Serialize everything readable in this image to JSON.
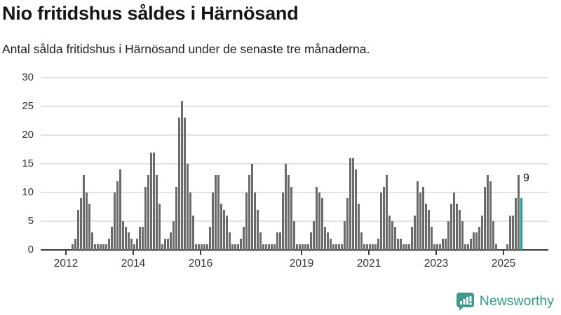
{
  "title": "Nio fritidshus såldes i Härnösand",
  "subtitle": "Antal sålda fritidshus i Härnösand under de senaste tre månaderna.",
  "branding": {
    "logo_text": "Newsworthy",
    "logo_icon": "newsworthy-speech-bubble-bar-chart-icon"
  },
  "colors": {
    "bar": "#6b6b6b",
    "highlight": "#14a099",
    "gridline": "#e2e2e2",
    "axis": "#3c3c3c",
    "logo_teal": "#35998b",
    "text": "#151515"
  },
  "chart_data": {
    "type": "bar",
    "title": "Nio fritidshus såldes i Härnösand",
    "subtitle": "Antal sålda fritidshus i Härnösand under de senaste tre månaderna.",
    "x_start": "2012-01",
    "x_end": "2025-07",
    "x_unit": "month",
    "x_tick_labels": [
      "2012",
      "2014",
      "2016",
      "2019",
      "2021",
      "2023",
      "2025"
    ],
    "y_ticks": [
      0,
      5,
      10,
      15,
      20,
      25,
      30
    ],
    "ylim": [
      0,
      30
    ],
    "grid": "horizontal",
    "legend": "none",
    "values": [
      0,
      0,
      1,
      2,
      7,
      9,
      13,
      10,
      8,
      3,
      1,
      1,
      1,
      1,
      1,
      2,
      4,
      10,
      12,
      14,
      5,
      4,
      3,
      2,
      1,
      2,
      4,
      4,
      11,
      13,
      17,
      17,
      13,
      8,
      1,
      2,
      2,
      3,
      5,
      11,
      23,
      26,
      23,
      15,
      10,
      6,
      1,
      1,
      1,
      1,
      1,
      4,
      10,
      13,
      13,
      8,
      7,
      6,
      3,
      1,
      1,
      1,
      2,
      4,
      10,
      13,
      15,
      10,
      7,
      3,
      1,
      1,
      1,
      1,
      1,
      3,
      3,
      10,
      15,
      13,
      11,
      5,
      1,
      1,
      1,
      1,
      1,
      3,
      5,
      11,
      10,
      9,
      4,
      3,
      2,
      1,
      1,
      1,
      1,
      5,
      9,
      16,
      16,
      14,
      8,
      3,
      1,
      1,
      1,
      1,
      1,
      2,
      10,
      11,
      13,
      6,
      5,
      4,
      2,
      2,
      1,
      1,
      1,
      4,
      6,
      12,
      10,
      11,
      8,
      7,
      4,
      1,
      1,
      1,
      2,
      2,
      5,
      8,
      10,
      8,
      7,
      5,
      1,
      1,
      2,
      3,
      3,
      4,
      6,
      11,
      13,
      12,
      5,
      1,
      0,
      0,
      0,
      1,
      6,
      6,
      9,
      13,
      9
    ],
    "highlight": {
      "index": 162,
      "value": 9,
      "label": "9"
    }
  }
}
